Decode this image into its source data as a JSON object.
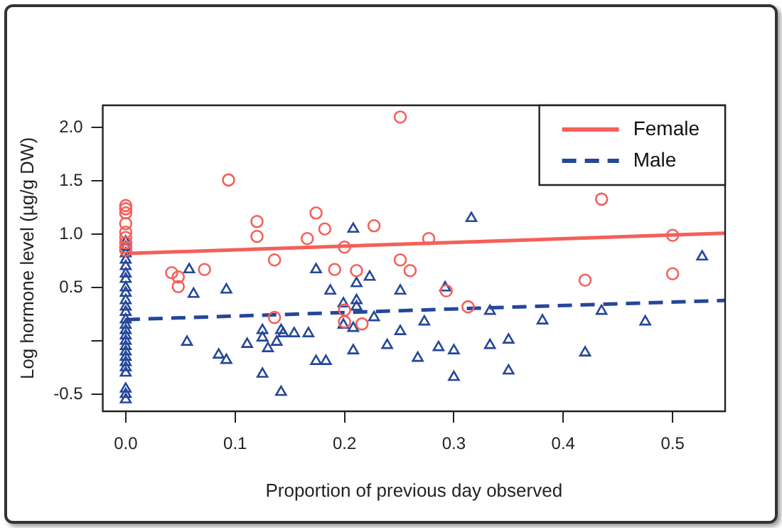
{
  "chart_data": {
    "type": "scatter",
    "xlabel": "Proportion of previous day observed",
    "ylabel": "Log hormone level (µg/g DW)",
    "xlim": [
      -0.021,
      0.548
    ],
    "xticks": [
      {
        "value": 0,
        "label": "0.0"
      },
      0.1,
      0.2,
      0.3,
      0.4,
      0.5
    ],
    "ylim": [
      -0.66,
      2.21
    ],
    "yticks": [
      -0.5,
      {
        "value": 0,
        "label": null
      },
      0.5,
      {
        "value": 1,
        "label": "1.0"
      },
      1.5,
      {
        "value": 2,
        "label": "2.0"
      }
    ],
    "grid": false,
    "legend": "top right",
    "series": [
      {
        "marker": "circle",
        "color": "#f4605a",
        "x": [
          0,
          0,
          0,
          0,
          0,
          0,
          0,
          0,
          0,
          0.042,
          0.048,
          0.048,
          0.072,
          0.094,
          0.12,
          0.12,
          0.136,
          0.136,
          0.174,
          0.166,
          0.182,
          0.191,
          0.2,
          0.211,
          0.227,
          0.251,
          0.251,
          0.26,
          0.277,
          0.2,
          0.2,
          0.216,
          0.293,
          0.313,
          0.42,
          0.435,
          0.5,
          0.5
        ],
        "values": [
          1.27,
          1.24,
          1.2,
          1.1,
          1.02,
          0.97,
          0.92,
          0.88,
          0.85,
          0.64,
          0.6,
          0.51,
          0.67,
          1.51,
          1.12,
          0.98,
          0.76,
          0.22,
          1.2,
          0.96,
          1.05,
          0.67,
          0.88,
          0.66,
          1.08,
          2.1,
          0.76,
          0.66,
          0.96,
          0.29,
          0.18,
          0.16,
          0.47,
          0.32,
          0.57,
          1.33,
          0.99,
          0.63
        ]
      },
      {
        "marker": "triangle",
        "color": "#25479a",
        "x": [
          0,
          0,
          0,
          0,
          0,
          0,
          0,
          0,
          0,
          0,
          0,
          0,
          0,
          0,
          0,
          0,
          0,
          0,
          0,
          0,
          0,
          0,
          0,
          0,
          0,
          0,
          0.058,
          0.062,
          0.092,
          0.056,
          0.085,
          0.092,
          0.111,
          0.125,
          0.125,
          0.13,
          0.125,
          0.138,
          0.142,
          0.142,
          0.144,
          0.154,
          0.167,
          0.174,
          0.174,
          0.183,
          0.187,
          0.199,
          0.199,
          0.208,
          0.211,
          0.211,
          0.211,
          0.208,
          0.208,
          0.223,
          0.227,
          0.239,
          0.251,
          0.251,
          0.267,
          0.273,
          0.286,
          0.292,
          0.3,
          0.3,
          0.316,
          0.333,
          0.333,
          0.35,
          0.35,
          0.381,
          0.42,
          0.435,
          0.475,
          0.527
        ],
        "values": [
          0.93,
          0.88,
          0.82,
          0.76,
          0.7,
          0.63,
          0.58,
          0.5,
          0.45,
          0.38,
          0.32,
          0.27,
          0.2,
          0.15,
          0.1,
          0.05,
          0,
          -0.05,
          -0.1,
          -0.15,
          -0.2,
          -0.25,
          -0.3,
          -0.45,
          -0.5,
          -0.55,
          0.67,
          0.44,
          0.48,
          -0.01,
          -0.13,
          -0.18,
          -0.03,
          0.1,
          0.03,
          -0.07,
          -0.31,
          -0.01,
          -0.48,
          0.1,
          0.07,
          0.07,
          0.07,
          0.67,
          -0.19,
          -0.19,
          0.47,
          0.35,
          0.15,
          1.05,
          0.54,
          0.38,
          0.32,
          0.12,
          -0.09,
          0.6,
          0.22,
          -0.04,
          0.47,
          0.09,
          -0.16,
          0.18,
          -0.06,
          0.5,
          -0.09,
          -0.34,
          1.15,
          0.28,
          -0.04,
          0.01,
          -0.28,
          0.19,
          -0.11,
          0.28,
          0.18,
          0.79
        ]
      },
      {
        "type": "line",
        "name": "Female",
        "color": "#f4605a",
        "line_style": "solid",
        "marker": "none",
        "x": [
          0,
          0.548
        ],
        "values": [
          0.82,
          1.01
        ]
      },
      {
        "type": "line",
        "name": "Male",
        "color": "#25479a",
        "line_style": "dashed",
        "marker": "none",
        "x": [
          0,
          0.15,
          0.3,
          0.548
        ],
        "values": [
          0.2,
          0.25,
          0.3,
          0.38
        ]
      }
    ]
  }
}
